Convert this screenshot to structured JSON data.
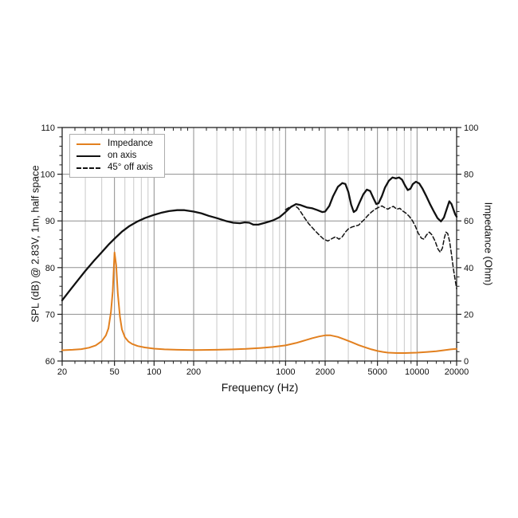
{
  "chart_data": {
    "type": "line",
    "title": "",
    "xlabel": "Frequency (Hz)",
    "ylabel_left": "SPL (dB) @ 2.83V, 1m, half space",
    "ylabel_right": "Impedance (Ohm)",
    "x_scale": "log",
    "x_range": [
      20,
      20000
    ],
    "y_left_range": [
      60,
      110
    ],
    "y_right_range": [
      0,
      100
    ],
    "x_ticks_labeled": [
      20,
      50,
      100,
      200,
      1000,
      2000,
      5000,
      10000,
      20000
    ],
    "x_grid_major": [
      50,
      100,
      200,
      1000,
      2000,
      5000,
      10000
    ],
    "x_grid_minor": [
      30,
      40,
      60,
      70,
      80,
      90,
      300,
      400,
      500,
      600,
      700,
      800,
      900,
      3000,
      4000,
      6000,
      7000,
      8000,
      9000
    ],
    "x_ticks_minor": [
      25,
      30,
      35,
      40,
      45,
      60,
      70,
      80,
      90,
      120,
      140,
      160,
      180,
      250,
      300,
      350,
      400,
      450,
      600,
      700,
      800,
      900,
      1200,
      1400,
      1600,
      1800,
      2500,
      3000,
      3500,
      4000,
      4500,
      6000,
      7000,
      8000,
      9000,
      12000,
      14000,
      16000,
      18000
    ],
    "y_left_ticks": [
      60,
      70,
      80,
      90,
      100,
      110
    ],
    "y_left_minor_step": 2,
    "y_right_ticks": [
      0,
      20,
      40,
      60,
      80,
      100
    ],
    "y_right_minor_step": 4,
    "y_grid": [
      70,
      80,
      90,
      100
    ],
    "grid": true,
    "legend_position": "top-left",
    "colors": {
      "impedance": "#E2801F",
      "trace": "#111111",
      "grid_minor": "#c9c9c9",
      "grid_major": "#8f8f8f",
      "frame": "#222222"
    },
    "series": [
      {
        "key": "impedance",
        "name": "Impedance",
        "axis": "right",
        "unit": "Ohm",
        "style": "solid",
        "width": 2,
        "color_ref": "impedance",
        "points": [
          [
            20,
            4.6
          ],
          [
            24,
            4.8
          ],
          [
            28,
            5.1
          ],
          [
            32,
            5.7
          ],
          [
            36,
            6.7
          ],
          [
            40,
            8.5
          ],
          [
            43,
            11
          ],
          [
            45,
            14
          ],
          [
            47,
            21
          ],
          [
            48.5,
            30
          ],
          [
            50,
            46.5
          ],
          [
            51.5,
            41
          ],
          [
            53,
            29
          ],
          [
            55,
            19
          ],
          [
            57,
            13.5
          ],
          [
            60,
            10.2
          ],
          [
            64,
            8.3
          ],
          [
            68,
            7.3
          ],
          [
            75,
            6.4
          ],
          [
            85,
            5.8
          ],
          [
            100,
            5.3
          ],
          [
            120,
            5.0
          ],
          [
            150,
            4.8
          ],
          [
            200,
            4.7
          ],
          [
            300,
            4.8
          ],
          [
            400,
            5.0
          ],
          [
            500,
            5.2
          ],
          [
            650,
            5.6
          ],
          [
            800,
            6.0
          ],
          [
            1000,
            6.7
          ],
          [
            1200,
            7.7
          ],
          [
            1400,
            8.8
          ],
          [
            1600,
            9.8
          ],
          [
            1800,
            10.5
          ],
          [
            2000,
            11.0
          ],
          [
            2200,
            11.0
          ],
          [
            2500,
            10.3
          ],
          [
            2800,
            9.3
          ],
          [
            3200,
            8.0
          ],
          [
            3600,
            6.8
          ],
          [
            4000,
            5.9
          ],
          [
            4500,
            5.0
          ],
          [
            5000,
            4.3
          ],
          [
            5500,
            3.9
          ],
          [
            6000,
            3.6
          ],
          [
            7000,
            3.4
          ],
          [
            8000,
            3.4
          ],
          [
            9000,
            3.5
          ],
          [
            10000,
            3.6
          ],
          [
            12000,
            3.9
          ],
          [
            14000,
            4.2
          ],
          [
            16000,
            4.6
          ],
          [
            18000,
            5.0
          ],
          [
            20000,
            5.2
          ]
        ]
      },
      {
        "key": "on-axis",
        "name": "on axis",
        "axis": "left",
        "unit": "dB",
        "style": "solid",
        "width": 2.3,
        "color_ref": "trace",
        "points": [
          [
            20,
            73.0
          ],
          [
            23,
            75.2
          ],
          [
            26,
            77.1
          ],
          [
            30,
            79.3
          ],
          [
            35,
            81.5
          ],
          [
            40,
            83.3
          ],
          [
            45,
            84.9
          ],
          [
            50,
            86.2
          ],
          [
            57,
            87.7
          ],
          [
            65,
            88.9
          ],
          [
            75,
            89.9
          ],
          [
            85,
            90.6
          ],
          [
            100,
            91.3
          ],
          [
            115,
            91.8
          ],
          [
            130,
            92.1
          ],
          [
            150,
            92.3
          ],
          [
            170,
            92.3
          ],
          [
            200,
            92.0
          ],
          [
            230,
            91.6
          ],
          [
            260,
            91.1
          ],
          [
            300,
            90.6
          ],
          [
            350,
            90.0
          ],
          [
            400,
            89.6
          ],
          [
            450,
            89.5
          ],
          [
            490,
            89.7
          ],
          [
            530,
            89.6
          ],
          [
            570,
            89.2
          ],
          [
            620,
            89.2
          ],
          [
            700,
            89.6
          ],
          [
            800,
            90.1
          ],
          [
            900,
            90.8
          ],
          [
            1000,
            91.9
          ],
          [
            1100,
            93.0
          ],
          [
            1200,
            93.6
          ],
          [
            1300,
            93.4
          ],
          [
            1450,
            92.9
          ],
          [
            1600,
            92.7
          ],
          [
            1750,
            92.3
          ],
          [
            1900,
            91.9
          ],
          [
            2000,
            92.0
          ],
          [
            2150,
            93.2
          ],
          [
            2300,
            95.3
          ],
          [
            2500,
            97.3
          ],
          [
            2700,
            98.1
          ],
          [
            2850,
            97.9
          ],
          [
            3000,
            96.2
          ],
          [
            3150,
            93.5
          ],
          [
            3300,
            91.9
          ],
          [
            3450,
            92.3
          ],
          [
            3650,
            93.9
          ],
          [
            3900,
            95.7
          ],
          [
            4150,
            96.7
          ],
          [
            4400,
            96.4
          ],
          [
            4650,
            94.9
          ],
          [
            4900,
            93.6
          ],
          [
            5100,
            93.8
          ],
          [
            5400,
            95.3
          ],
          [
            5700,
            97.1
          ],
          [
            6100,
            98.6
          ],
          [
            6500,
            99.3
          ],
          [
            6900,
            99.1
          ],
          [
            7300,
            99.3
          ],
          [
            7700,
            98.8
          ],
          [
            8100,
            97.6
          ],
          [
            8500,
            96.6
          ],
          [
            8900,
            96.9
          ],
          [
            9300,
            97.9
          ],
          [
            9800,
            98.4
          ],
          [
            10400,
            98.0
          ],
          [
            11000,
            96.9
          ],
          [
            11800,
            95.2
          ],
          [
            12600,
            93.5
          ],
          [
            13500,
            91.9
          ],
          [
            14300,
            90.6
          ],
          [
            15200,
            89.9
          ],
          [
            16000,
            90.7
          ],
          [
            16800,
            92.5
          ],
          [
            17600,
            94.2
          ],
          [
            18300,
            93.6
          ],
          [
            19000,
            92.3
          ],
          [
            19500,
            91.4
          ],
          [
            20000,
            90.9
          ]
        ]
      },
      {
        "key": "off-axis",
        "name": "45° off axis",
        "axis": "left",
        "unit": "dB",
        "style": "dashed",
        "width": 1.5,
        "color_ref": "trace",
        "points": [
          [
            1000,
            92.4
          ],
          [
            1080,
            93.0
          ],
          [
            1160,
            93.4
          ],
          [
            1250,
            92.7
          ],
          [
            1320,
            91.7
          ],
          [
            1400,
            90.6
          ],
          [
            1500,
            89.4
          ],
          [
            1650,
            88.1
          ],
          [
            1800,
            87.0
          ],
          [
            1950,
            86.1
          ],
          [
            2100,
            85.7
          ],
          [
            2250,
            86.2
          ],
          [
            2400,
            86.6
          ],
          [
            2550,
            86.1
          ],
          [
            2700,
            86.6
          ],
          [
            2850,
            87.6
          ],
          [
            3000,
            88.3
          ],
          [
            3200,
            88.7
          ],
          [
            3400,
            88.9
          ],
          [
            3600,
            89.1
          ],
          [
            3800,
            89.8
          ],
          [
            4000,
            90.4
          ],
          [
            4200,
            91.1
          ],
          [
            4500,
            91.9
          ],
          [
            4800,
            92.5
          ],
          [
            5100,
            92.9
          ],
          [
            5400,
            93.2
          ],
          [
            5700,
            92.8
          ],
          [
            6000,
            92.5
          ],
          [
            6300,
            92.9
          ],
          [
            6600,
            93.1
          ],
          [
            7000,
            92.5
          ],
          [
            7400,
            92.7
          ],
          [
            7800,
            92.1
          ],
          [
            8200,
            91.7
          ],
          [
            8700,
            91.0
          ],
          [
            9200,
            90.1
          ],
          [
            9700,
            88.9
          ],
          [
            10200,
            87.4
          ],
          [
            10800,
            86.3
          ],
          [
            11300,
            86.1
          ],
          [
            11800,
            87.0
          ],
          [
            12400,
            87.6
          ],
          [
            13000,
            87.0
          ],
          [
            13700,
            85.7
          ],
          [
            14400,
            84.0
          ],
          [
            15000,
            83.3
          ],
          [
            15600,
            84.2
          ],
          [
            16100,
            86.3
          ],
          [
            16600,
            87.6
          ],
          [
            17100,
            87.3
          ],
          [
            17700,
            85.6
          ],
          [
            18300,
            82.8
          ],
          [
            18900,
            79.8
          ],
          [
            19500,
            77.3
          ],
          [
            20000,
            75.5
          ]
        ]
      }
    ]
  }
}
